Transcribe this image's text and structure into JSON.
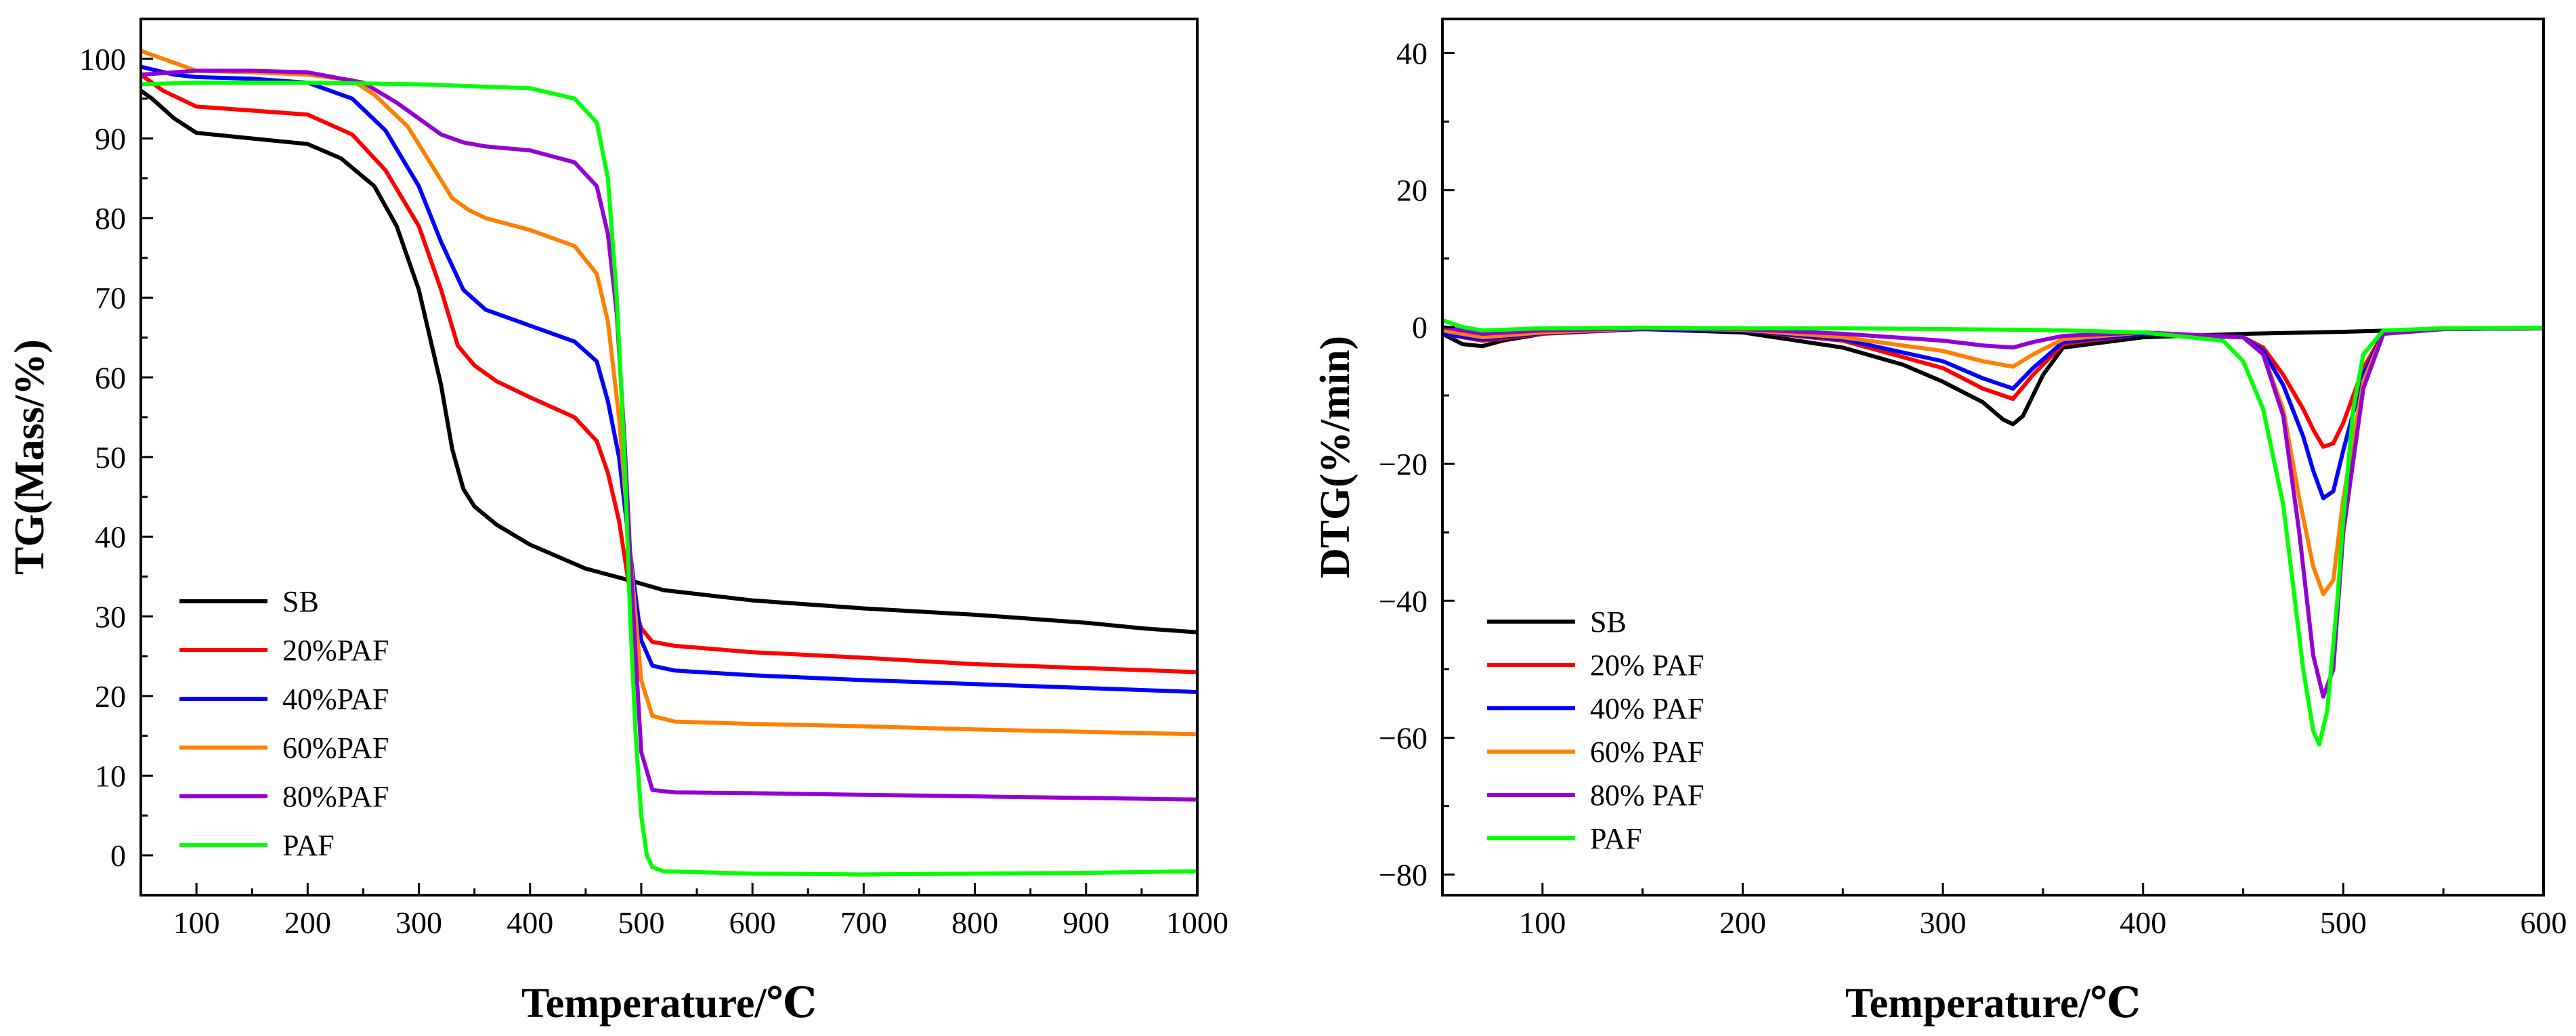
{
  "chart_data": [
    {
      "type": "line",
      "title": "",
      "xlabel": "Temperature/℃",
      "ylabel": "TG(Mass/%)",
      "xlim": [
        50,
        1000
      ],
      "ylim": [
        -5,
        105
      ],
      "xticks": [
        100,
        200,
        300,
        400,
        500,
        600,
        700,
        800,
        900,
        1000
      ],
      "yticks": [
        0,
        10,
        20,
        30,
        40,
        50,
        60,
        70,
        80,
        90,
        100
      ],
      "xtick_labels": [
        "100",
        "200",
        "300",
        "400",
        "500",
        "600",
        "700",
        "800",
        "900",
        "1000"
      ],
      "ytick_labels": [
        "0",
        "10",
        "20",
        "30",
        "40",
        "50",
        "60",
        "70",
        "80",
        "90",
        "100"
      ],
      "grid": false,
      "legend_position": "bottom-left",
      "series": [
        {
          "name": "SB",
          "color": "#000000",
          "x": [
            50,
            60,
            80,
            100,
            150,
            200,
            230,
            260,
            280,
            300,
            320,
            330,
            340,
            350,
            370,
            400,
            450,
            490,
            520,
            600,
            700,
            800,
            900,
            950,
            1000
          ],
          "y": [
            96,
            95,
            92.5,
            90.7,
            90,
            89.3,
            87.5,
            84,
            79,
            71,
            59,
            51,
            46,
            43.8,
            41.5,
            39,
            36,
            34.5,
            33.3,
            32,
            31,
            30.2,
            29.2,
            28.5,
            28
          ]
        },
        {
          "name": "20%PAF",
          "color": "#ff0000",
          "x": [
            50,
            70,
            100,
            150,
            200,
            240,
            270,
            300,
            320,
            335,
            350,
            370,
            400,
            440,
            460,
            470,
            480,
            490,
            500,
            510,
            530,
            600,
            700,
            800,
            900,
            1000
          ],
          "y": [
            98,
            96,
            94,
            93.5,
            93,
            90.5,
            86,
            79,
            71,
            64,
            61.5,
            59.5,
            57.5,
            55,
            52,
            48,
            42,
            33,
            28.5,
            26.8,
            26.3,
            25.5,
            24.8,
            24,
            23.5,
            23
          ]
        },
        {
          "name": "40%PAF",
          "color": "#0000ff",
          "x": [
            50,
            80,
            100,
            150,
            200,
            240,
            270,
            300,
            320,
            340,
            360,
            400,
            440,
            460,
            470,
            480,
            490,
            500,
            510,
            530,
            600,
            700,
            800,
            900,
            1000
          ],
          "y": [
            99,
            98,
            97.7,
            97.5,
            97,
            95,
            91,
            84,
            77,
            71,
            68.5,
            66.5,
            64.5,
            62,
            57,
            50,
            38,
            27,
            23.8,
            23.2,
            22.6,
            22,
            21.5,
            21,
            20.5
          ]
        },
        {
          "name": "60%PAF",
          "color": "#ff8000",
          "x": [
            50,
            70,
            100,
            150,
            200,
            240,
            260,
            290,
            310,
            330,
            345,
            360,
            400,
            440,
            460,
            470,
            480,
            490,
            500,
            510,
            530,
            600,
            700,
            800,
            900,
            1000
          ],
          "y": [
            101,
            100,
            98.5,
            98.3,
            98,
            97.3,
            95.5,
            91.5,
            87,
            82.5,
            81,
            80,
            78.5,
            76.5,
            73,
            67,
            55,
            38,
            22,
            17.5,
            16.8,
            16.5,
            16.2,
            15.8,
            15.5,
            15.2
          ]
        },
        {
          "name": "80%PAF",
          "color": "#9400d3",
          "x": [
            50,
            80,
            100,
            150,
            200,
            250,
            280,
            300,
            320,
            340,
            360,
            400,
            440,
            460,
            470,
            478,
            485,
            490,
            495,
            500,
            510,
            530,
            600,
            700,
            800,
            900,
            1000
          ],
          "y": [
            98,
            98.3,
            98.5,
            98.5,
            98.3,
            97,
            94.5,
            92.5,
            90.5,
            89.5,
            89,
            88.5,
            87,
            84,
            78,
            68,
            52,
            38,
            25,
            13,
            8.2,
            7.9,
            7.8,
            7.6,
            7.4,
            7.2,
            7
          ]
        },
        {
          "name": "PAF",
          "color": "#00ff00",
          "x": [
            50,
            100,
            200,
            300,
            400,
            440,
            460,
            470,
            478,
            485,
            490,
            495,
            500,
            505,
            510,
            520,
            600,
            700,
            800,
            900,
            1000
          ],
          "y": [
            96.8,
            97,
            97,
            96.8,
            96.3,
            95,
            92,
            85,
            70,
            50,
            30,
            15,
            5,
            0,
            -1.5,
            -2,
            -2.3,
            -2.4,
            -2.3,
            -2.2,
            -2
          ]
        }
      ]
    },
    {
      "type": "line",
      "title": "",
      "xlabel": "Temperature/℃",
      "ylabel": "DTG(%/min)",
      "xlim": [
        50,
        600
      ],
      "ylim": [
        -83,
        45
      ],
      "xticks": [
        100,
        200,
        300,
        400,
        500,
        600
      ],
      "yticks": [
        -80,
        -60,
        -40,
        -20,
        0,
        20,
        40
      ],
      "xtick_labels": [
        "100",
        "200",
        "300",
        "400",
        "500",
        "600"
      ],
      "ytick_labels": [
        "−80",
        "−60",
        "−40",
        "−20",
        "0",
        "20",
        "40"
      ],
      "grid": false,
      "legend_position": "bottom-left",
      "series": [
        {
          "name": "SB",
          "color": "#000000",
          "x": [
            50,
            60,
            70,
            80,
            100,
            120,
            150,
            200,
            250,
            280,
            300,
            320,
            330,
            335,
            340,
            350,
            360,
            400,
            450,
            500,
            550,
            600
          ],
          "y": [
            -1,
            -2.5,
            -2.8,
            -2,
            -1,
            -0.5,
            -0.3,
            -0.8,
            -3,
            -5.5,
            -8,
            -11,
            -13.5,
            -14.2,
            -13,
            -7,
            -3,
            -1.5,
            -1,
            -0.7,
            -0.3,
            -0.2
          ]
        },
        {
          "name": "20% PAF",
          "color": "#ff0000",
          "x": [
            50,
            70,
            100,
            150,
            200,
            250,
            300,
            320,
            335,
            345,
            360,
            400,
            450,
            460,
            470,
            480,
            485,
            490,
            495,
            500,
            510,
            520,
            550,
            600
          ],
          "y": [
            -1,
            -2,
            -1,
            -0.3,
            -0.5,
            -2,
            -6,
            -9,
            -10.5,
            -7,
            -2.5,
            -1,
            -1.5,
            -3,
            -7,
            -12,
            -15,
            -17.5,
            -17,
            -14,
            -6,
            -1,
            -0.3,
            -0.2
          ]
        },
        {
          "name": "40% PAF",
          "color": "#0000ff",
          "x": [
            50,
            70,
            100,
            150,
            200,
            250,
            300,
            320,
            335,
            345,
            360,
            400,
            450,
            460,
            470,
            480,
            485,
            490,
            495,
            500,
            510,
            520,
            550,
            600
          ],
          "y": [
            -1,
            -1.8,
            -0.9,
            -0.3,
            -0.5,
            -1.8,
            -5,
            -7.5,
            -9,
            -6,
            -2.2,
            -1,
            -1.5,
            -3.5,
            -8.5,
            -16,
            -21,
            -25,
            -24,
            -18,
            -7,
            -1,
            -0.3,
            -0.2
          ]
        },
        {
          "name": "60% PAF",
          "color": "#ff8000",
          "x": [
            50,
            70,
            100,
            150,
            200,
            250,
            300,
            320,
            335,
            345,
            360,
            400,
            450,
            460,
            470,
            478,
            485,
            490,
            495,
            500,
            510,
            520,
            550,
            600
          ],
          "y": [
            -0.5,
            -1.5,
            -0.8,
            -0.2,
            -0.4,
            -1.5,
            -3.5,
            -5,
            -5.8,
            -4,
            -1.8,
            -0.8,
            -1.5,
            -4,
            -12,
            -25,
            -35,
            -39,
            -37,
            -25,
            -8,
            -1,
            -0.3,
            -0.2
          ]
        },
        {
          "name": "80% PAF",
          "color": "#9400d3",
          "x": [
            50,
            70,
            100,
            150,
            200,
            250,
            300,
            320,
            335,
            345,
            360,
            400,
            450,
            460,
            470,
            478,
            485,
            490,
            495,
            500,
            510,
            520,
            550,
            600
          ],
          "y": [
            0,
            -1,
            -0.5,
            -0.2,
            -0.3,
            -1,
            -2,
            -2.7,
            -3,
            -2.2,
            -1.3,
            -0.8,
            -1.5,
            -4,
            -13,
            -30,
            -48,
            -54,
            -50,
            -30,
            -9,
            -1,
            -0.3,
            -0.2
          ]
        },
        {
          "name": "PAF",
          "color": "#00ff00",
          "x": [
            50,
            60,
            70,
            100,
            150,
            200,
            250,
            300,
            340,
            360,
            400,
            440,
            450,
            460,
            470,
            475,
            480,
            485,
            488,
            492,
            497,
            500,
            505,
            510,
            520,
            550,
            600
          ],
          "y": [
            1,
            0,
            -0.5,
            -0.2,
            -0.1,
            -0.2,
            -0.2,
            -0.3,
            -0.4,
            -0.5,
            -0.8,
            -2,
            -5,
            -12,
            -26,
            -38,
            -50,
            -59,
            -61,
            -56,
            -40,
            -28,
            -12,
            -4,
            -0.5,
            -0.2,
            -0.1
          ]
        }
      ]
    }
  ]
}
